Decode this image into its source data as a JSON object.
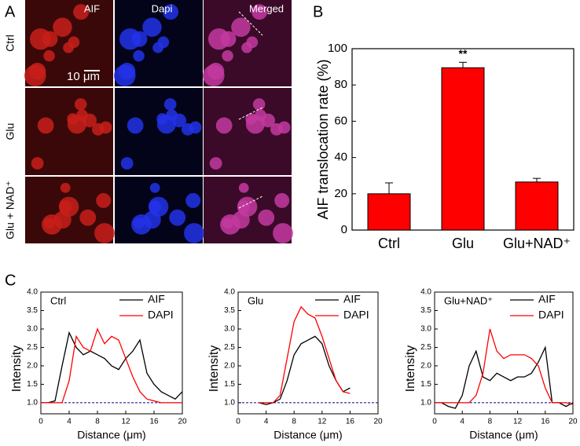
{
  "panel_labels": [
    "A",
    "B",
    "C"
  ],
  "micrographs": {
    "columns": [
      "AIF",
      "Dapi",
      "Merged"
    ],
    "rows": [
      "Ctrl",
      "Glu",
      "Glu + NAD⁺"
    ],
    "scale_bar": "10 μm"
  },
  "chart_data": [
    {
      "type": "bar",
      "categories": [
        "Ctrl",
        "Glu",
        "Glu+NAD⁺"
      ],
      "values": [
        20,
        89.5,
        26.5
      ],
      "errors": [
        6,
        3,
        2
      ],
      "annotations": [
        null,
        "**",
        null
      ],
      "color": "#ff0000",
      "y_label": "AIF translocation rate (%)",
      "ylim": [
        0,
        100
      ],
      "yticks": [
        0,
        20,
        40,
        60,
        80,
        100
      ]
    },
    {
      "type": "line",
      "title": "Ctrl",
      "x_label": "Distance (μm)",
      "y_label": "Intensity",
      "x": [
        0,
        1,
        2,
        3,
        4,
        5,
        6,
        7,
        8,
        9,
        10,
        11,
        12,
        13,
        14,
        15,
        16,
        17,
        18,
        19,
        20
      ],
      "series": [
        {
          "name": "AIF",
          "color": "#000000",
          "values": [
            1.0,
            1.0,
            1.05,
            2.0,
            2.9,
            2.5,
            2.3,
            2.4,
            2.3,
            2.2,
            2.0,
            1.9,
            2.2,
            2.4,
            2.7,
            1.8,
            1.5,
            1.3,
            1.2,
            1.1,
            1.3
          ]
        },
        {
          "name": "DAPI",
          "color": "#ff0000",
          "values": [
            1.0,
            1.0,
            1.0,
            1.0,
            1.6,
            2.8,
            2.5,
            2.4,
            3.0,
            2.6,
            2.8,
            2.7,
            2.2,
            1.7,
            1.3,
            1.1,
            1.05,
            1.0,
            1.0,
            1.0,
            1.0
          ]
        }
      ],
      "baseline": 1,
      "xlim": [
        0,
        20
      ],
      "xticks": [
        0,
        4,
        8,
        12,
        16,
        20
      ],
      "ylim": [
        0.7,
        4
      ],
      "yticks": [
        {
          "value": 1,
          "label": "1.0"
        },
        {
          "value": 1.5,
          "label": "1.5"
        },
        {
          "value": 2,
          "label": "2.0"
        },
        {
          "value": 2.5,
          "label": "2.5"
        },
        {
          "value": 3,
          "label": "3.0"
        },
        {
          "value": 3.5,
          "label": "3.5"
        },
        {
          "value": 4,
          "label": "4.0"
        }
      ]
    },
    {
      "type": "line",
      "title": "Glu",
      "x_label": "Distance (μm)",
      "y_label": "Intensity",
      "x": [
        3,
        4,
        5,
        6,
        7,
        8,
        9,
        10,
        11,
        12,
        13,
        14,
        15,
        16
      ],
      "series": [
        {
          "name": "AIF",
          "color": "#000000",
          "values": [
            1.0,
            0.95,
            1.0,
            1.1,
            1.6,
            2.3,
            2.6,
            2.7,
            2.8,
            2.6,
            2.0,
            1.6,
            1.3,
            1.4
          ]
        },
        {
          "name": "DAPI",
          "color": "#ff0000",
          "values": [
            1.0,
            1.0,
            1.0,
            1.2,
            2.2,
            3.2,
            3.6,
            3.4,
            3.3,
            2.8,
            2.2,
            1.6,
            1.3,
            1.25
          ]
        }
      ],
      "baseline": 1,
      "xlim": [
        0,
        20
      ],
      "xticks": [
        0,
        4,
        8,
        12,
        16,
        20
      ],
      "ylim": [
        0.7,
        4
      ],
      "yticks": [
        {
          "value": 1,
          "label": "1.0"
        },
        {
          "value": 1.5,
          "label": "1.5"
        },
        {
          "value": 2,
          "label": "2.0"
        },
        {
          "value": 2.5,
          "label": "2.5"
        },
        {
          "value": 3,
          "label": "3.0"
        },
        {
          "value": 3.5,
          "label": "3.5"
        },
        {
          "value": 4,
          "label": "4.0"
        }
      ]
    },
    {
      "type": "line",
      "title": "Glu+NAD⁺",
      "x_label": "Distance (μm)",
      "y_label": "Intensity",
      "x": [
        0,
        1,
        2,
        3,
        4,
        5,
        6,
        7,
        8,
        9,
        10,
        11,
        12,
        13,
        14,
        15,
        16,
        17,
        18,
        19,
        20
      ],
      "series": [
        {
          "name": "AIF",
          "color": "#000000",
          "values": [
            1.0,
            1.0,
            0.9,
            0.85,
            1.2,
            2.0,
            2.4,
            1.7,
            1.6,
            1.8,
            1.7,
            1.6,
            1.7,
            1.7,
            1.8,
            2.1,
            2.5,
            1.0,
            1.0,
            0.9,
            1.0
          ]
        },
        {
          "name": "DAPI",
          "color": "#ff0000",
          "values": [
            1.0,
            1.0,
            1.0,
            1.0,
            1.0,
            1.0,
            1.2,
            1.8,
            3.0,
            2.4,
            2.2,
            2.3,
            2.3,
            2.3,
            2.2,
            2.0,
            1.4,
            1.0,
            1.0,
            1.0,
            0.95
          ]
        }
      ],
      "baseline": 1,
      "xlim": [
        0,
        20
      ],
      "xticks": [
        0,
        4,
        8,
        12,
        16,
        20
      ],
      "ylim": [
        0.7,
        4
      ],
      "yticks": [
        {
          "value": 1,
          "label": "1.0"
        },
        {
          "value": 1.5,
          "label": "1.5"
        },
        {
          "value": 2,
          "label": "2.0"
        },
        {
          "value": 2.5,
          "label": "2.5"
        },
        {
          "value": 3,
          "label": "3.0"
        },
        {
          "value": 3.5,
          "label": "3.5"
        },
        {
          "value": 4,
          "label": "4.0"
        }
      ]
    }
  ]
}
